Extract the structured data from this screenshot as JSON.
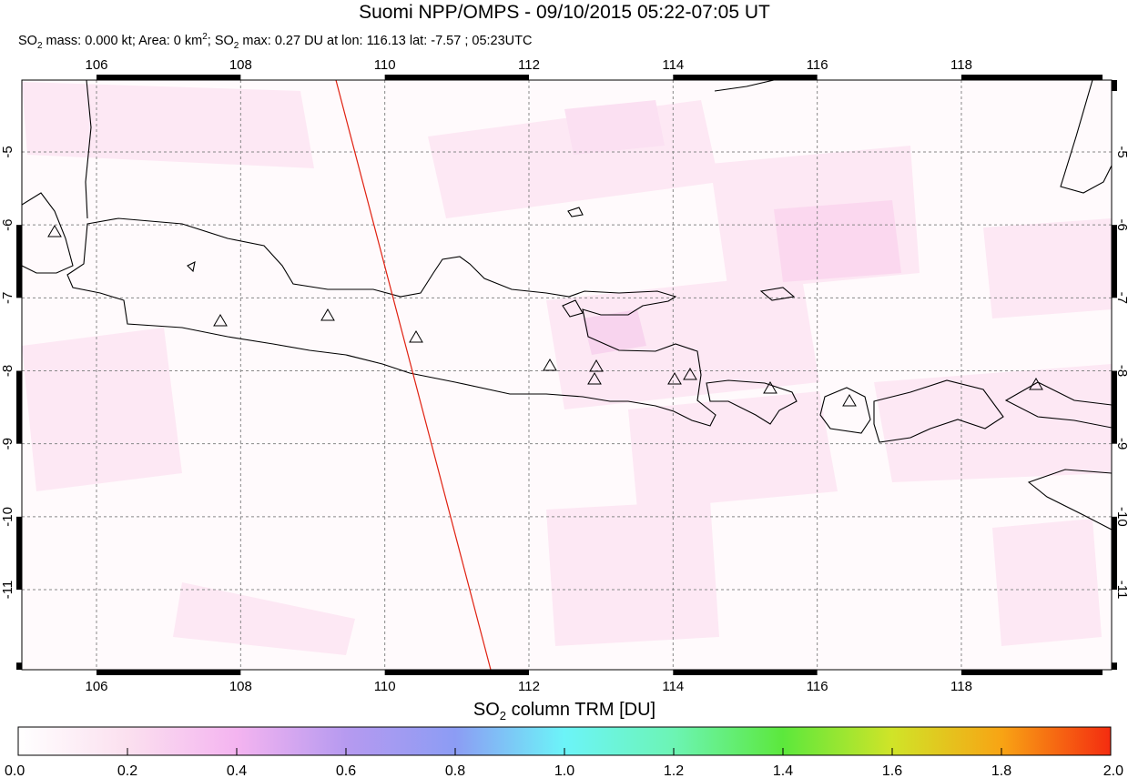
{
  "header": {
    "title": "Suomi NPP/OMPS - 09/10/2015 05:22-07:05 UT",
    "subtitle": [
      "SO",
      "2",
      " mass: 0.000 kt; Area: 0 km",
      "2",
      "; SO",
      "2",
      " max: 0.27 DU at lon: 116.13 lat: -7.57 ; 05:23UTC"
    ]
  },
  "map": {
    "lon_ticks": [
      "106",
      "108",
      "110",
      "112",
      "114",
      "116",
      "118"
    ],
    "lat_ticks": [
      "-5",
      "-6",
      "-7",
      "-8",
      "-9",
      "-10",
      "-11"
    ]
  },
  "colorbar": {
    "label": [
      "SO",
      "2",
      " column TRM [DU]"
    ],
    "ticks": [
      "0.0",
      "0.2",
      "0.4",
      "0.6",
      "0.8",
      "1.0",
      "1.2",
      "1.4",
      "1.6",
      "1.8",
      "2.0"
    ]
  }
}
